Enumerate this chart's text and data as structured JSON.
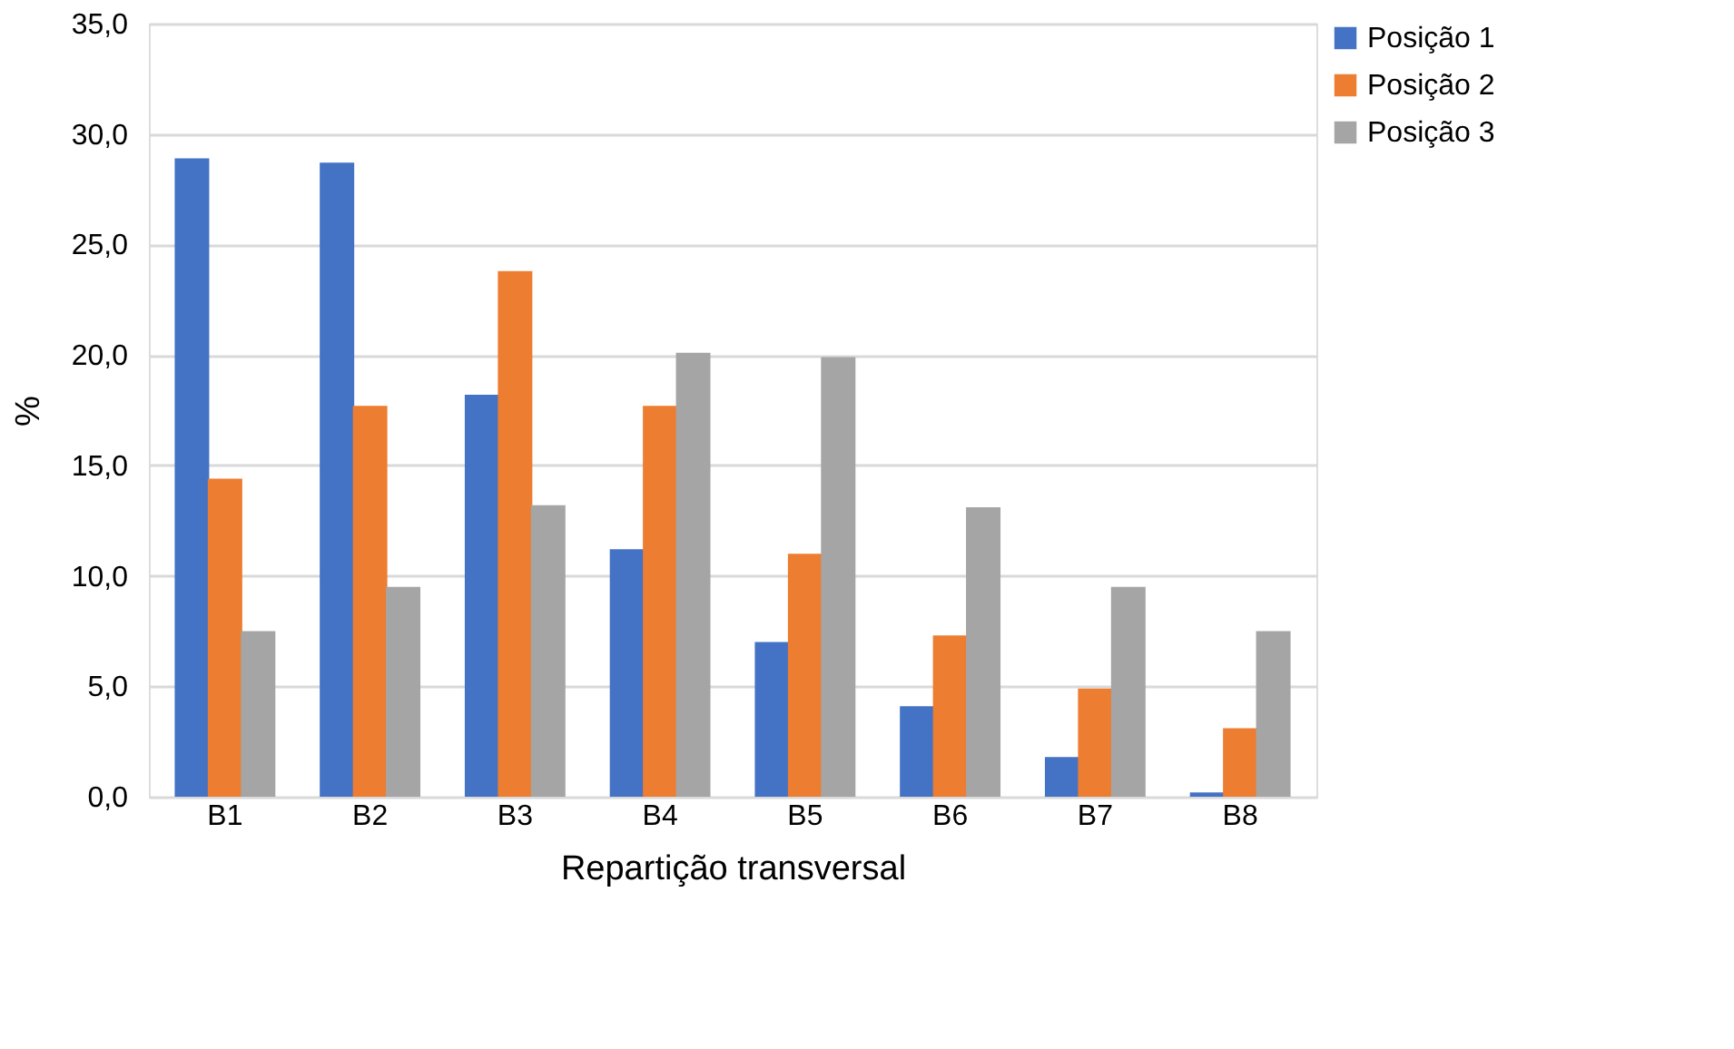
{
  "chart_data": {
    "type": "bar",
    "xlabel": "Repartição transversal",
    "ylabel": "%",
    "categories": [
      "B1",
      "B2",
      "B3",
      "B4",
      "B5",
      "B6",
      "B7",
      "B8"
    ],
    "series": [
      {
        "name": "Posição 1",
        "color": "#4472c4",
        "values": [
          28.9,
          28.7,
          18.2,
          11.2,
          7.0,
          4.1,
          1.8,
          0.2
        ]
      },
      {
        "name": "Posição 2",
        "color": "#ed7d31",
        "values": [
          14.4,
          17.7,
          23.8,
          17.7,
          11.0,
          7.3,
          4.9,
          3.1
        ]
      },
      {
        "name": "Posição 3",
        "color": "#a5a5a5",
        "values": [
          7.5,
          9.5,
          13.2,
          20.1,
          19.9,
          13.1,
          9.5,
          7.5
        ]
      }
    ],
    "ylim": [
      0,
      35
    ],
    "yticks": [
      {
        "value": 0,
        "label": "0,0"
      },
      {
        "value": 5,
        "label": "5,0"
      },
      {
        "value": 10,
        "label": "10,0"
      },
      {
        "value": 15,
        "label": "15,0"
      },
      {
        "value": 20,
        "label": "20,0"
      },
      {
        "value": 25,
        "label": "25,0"
      },
      {
        "value": 30,
        "label": "30,0"
      },
      {
        "value": 35,
        "label": "35,0"
      }
    ],
    "grid": "y",
    "legend": "right"
  }
}
